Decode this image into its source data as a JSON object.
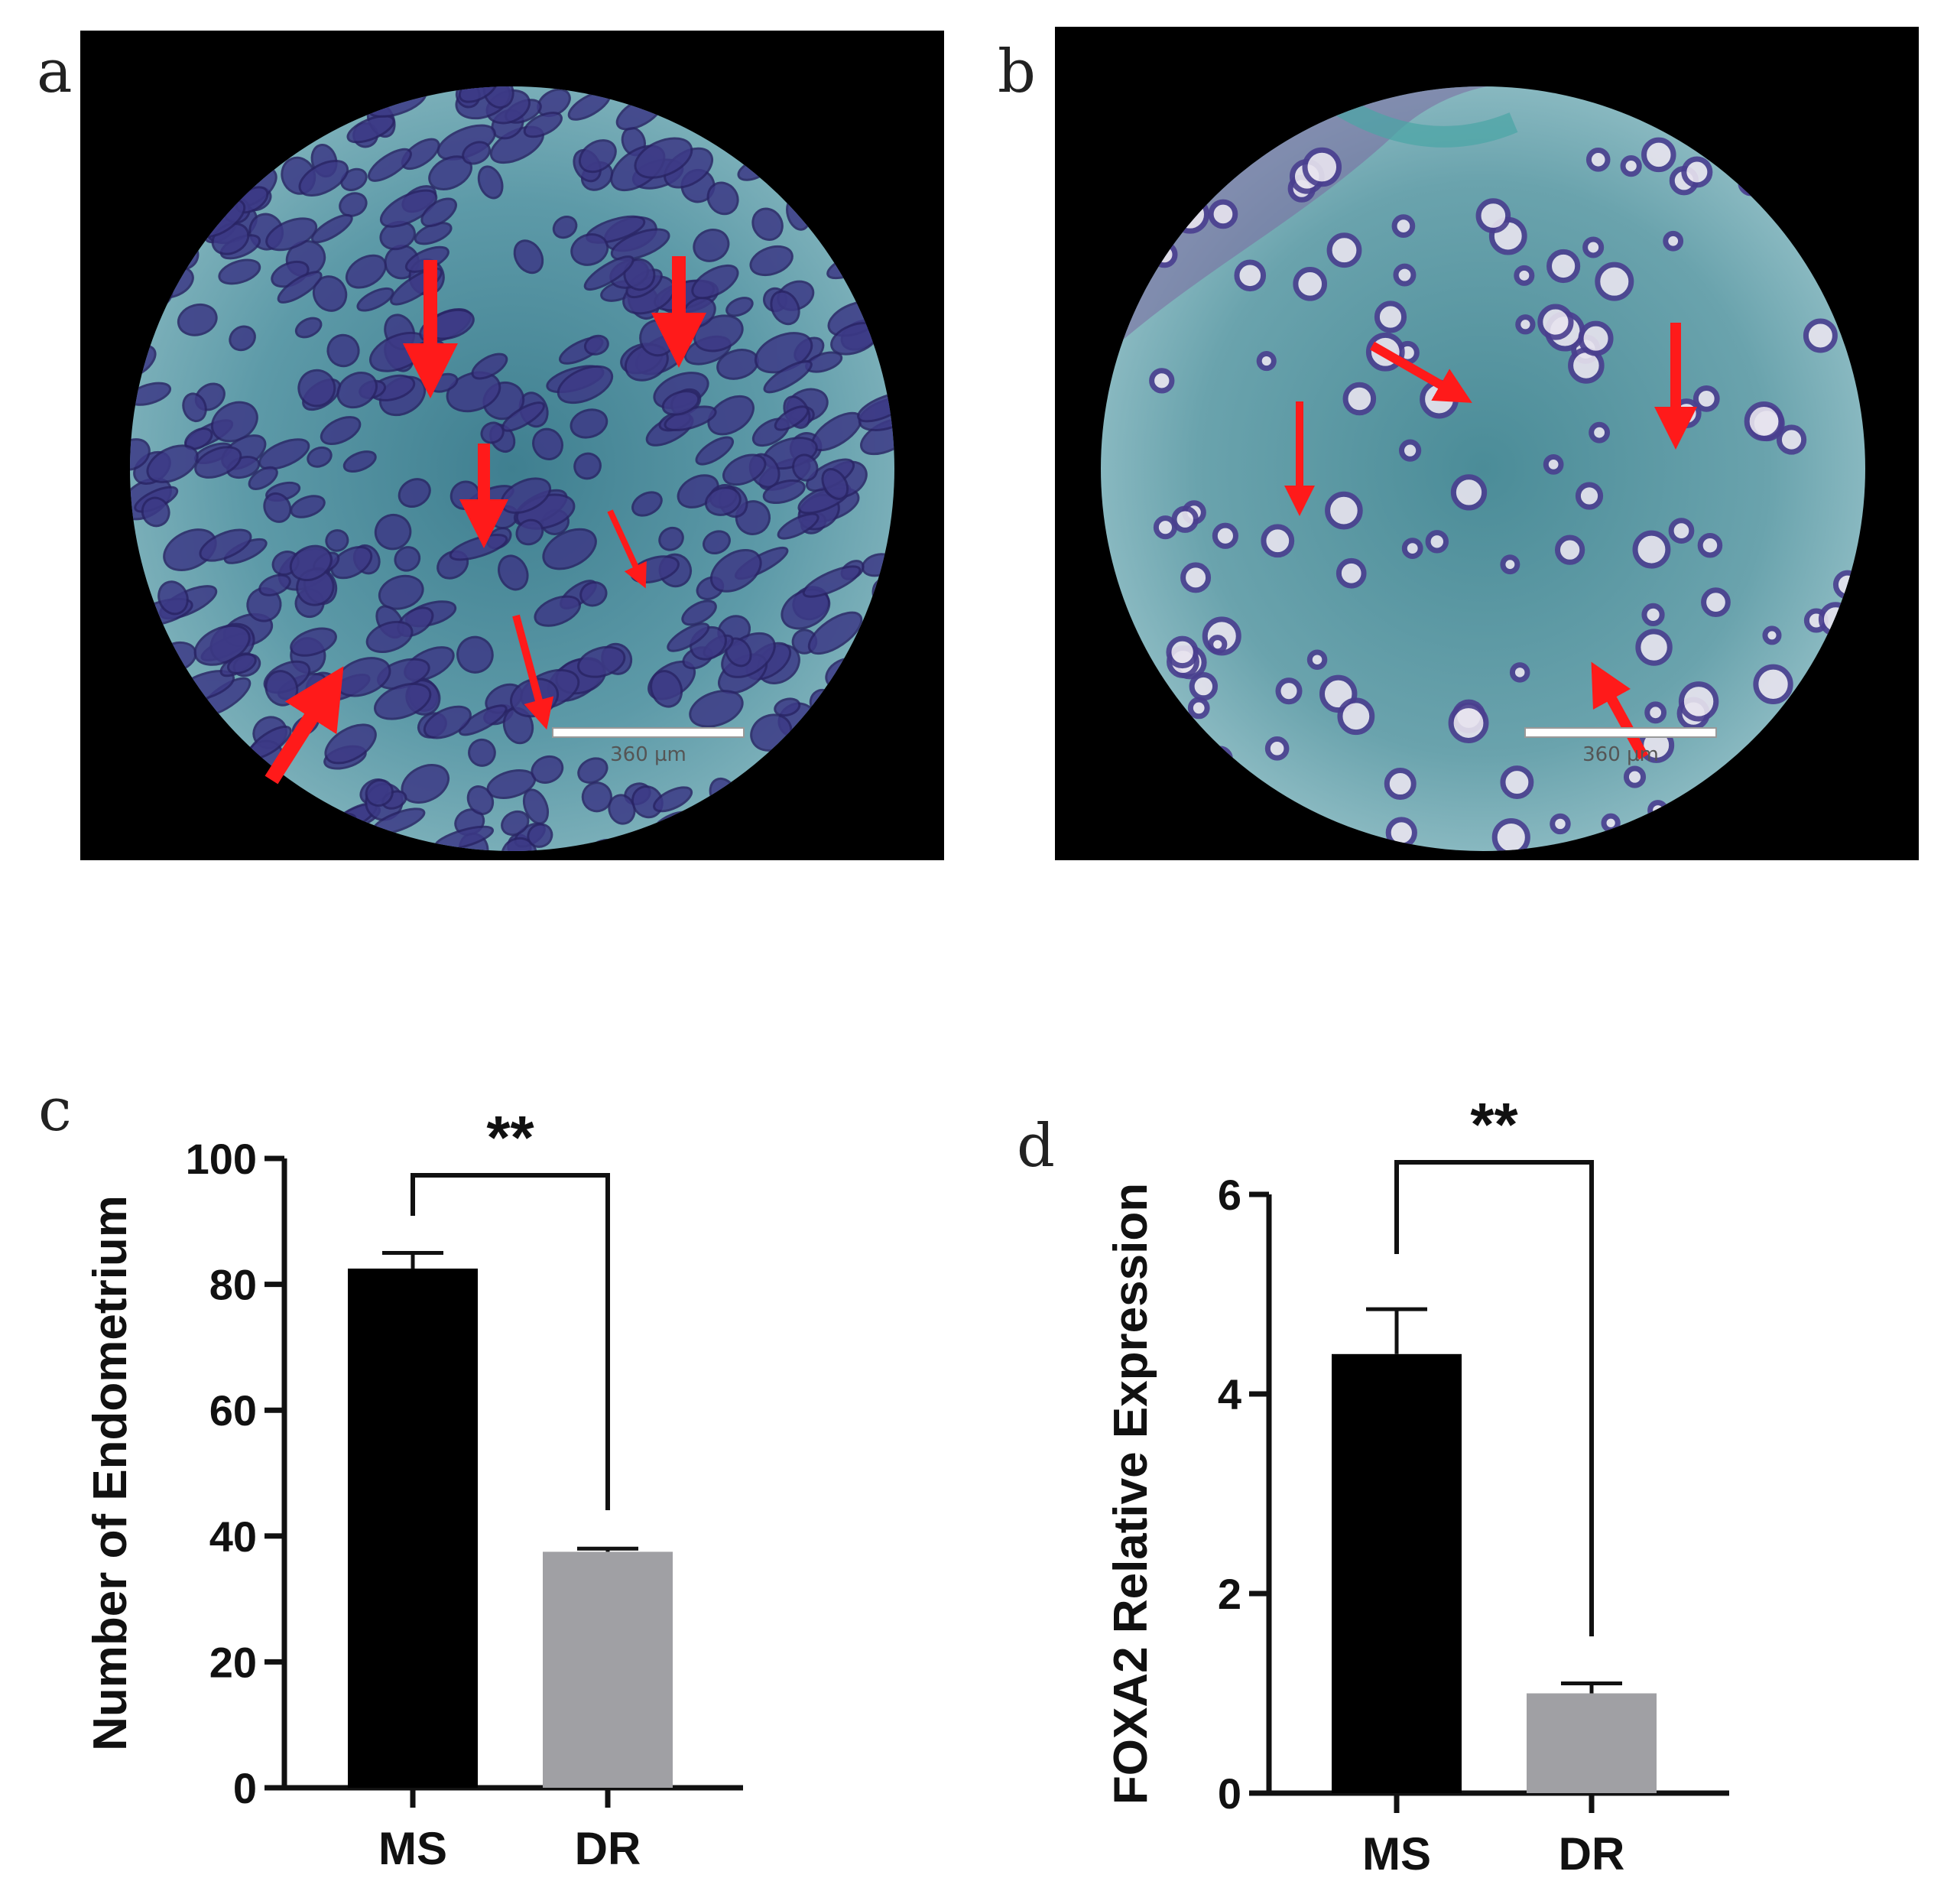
{
  "panels": {
    "a": {
      "letter": "a",
      "scale_bar": "360 µm"
    },
    "b": {
      "letter": "b",
      "scale_bar": "360 µm"
    },
    "c": {
      "letter": "c"
    },
    "d": {
      "letter": "d"
    }
  },
  "colors": {
    "bar_ms": "#000000",
    "bar_dr": "#a0a0a4",
    "arrow": "#ff1a1a",
    "tissue_stroma": "#5f9ea6",
    "tissue_gland": "#4a3f8f",
    "background": "#000000"
  },
  "chart_data": [
    {
      "type": "bar",
      "panel": "c",
      "categories": [
        "MS",
        "DR"
      ],
      "values": [
        82.5,
        37.5
      ],
      "errors": [
        2.5,
        0.5
      ],
      "ylabel": "Number of Endometrium",
      "xlabel": "",
      "ylim": [
        0,
        100
      ],
      "yticks": [
        0,
        20,
        40,
        60,
        80,
        100
      ],
      "significance": "**"
    },
    {
      "type": "bar",
      "panel": "d",
      "categories": [
        "MS",
        "DR"
      ],
      "values": [
        4.4,
        1.0
      ],
      "errors": [
        0.45,
        0.1
      ],
      "ylabel": "FOXA2 Relative Expression",
      "xlabel": "",
      "ylim": [
        0,
        6
      ],
      "yticks": [
        0,
        2,
        4,
        6
      ],
      "significance": "**"
    }
  ]
}
